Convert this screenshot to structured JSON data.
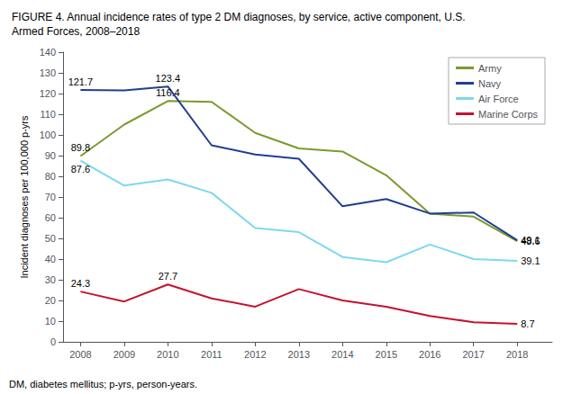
{
  "chart_data": {
    "type": "line",
    "title": "FIGURE 4. Annual incidence rates of type 2 DM diagnoses, by service, active component, U.S.\nArmed Forces, 2008–2018",
    "annotations": [
      "DM, diabetes mellitus; p-yrs, person-years."
    ],
    "ylabel": "Incident diagnoses per 100,000 p-yrs",
    "x": [
      2008,
      2009,
      2010,
      2011,
      2012,
      2013,
      2014,
      2015,
      2016,
      2017,
      2018
    ],
    "xlim": [
      2007.6,
      2018.8
    ],
    "xticks": [
      2008,
      2009,
      2010,
      2011,
      2012,
      2013,
      2014,
      2015,
      2016,
      2017,
      2018
    ],
    "ylim": [
      0,
      140
    ],
    "yticks": [
      0,
      10,
      20,
      30,
      40,
      50,
      60,
      70,
      80,
      90,
      100,
      110,
      120,
      130,
      140
    ],
    "grid": false,
    "legend": "upper right",
    "series": [
      {
        "name": "Army",
        "color": "#7a9a2e",
        "values": [
          89.8,
          105.0,
          116.4,
          116.0,
          101.0,
          93.5,
          92.0,
          80.5,
          62.0,
          60.5,
          48.6
        ],
        "value_labels": [
          "89.8",
          null,
          "116.4",
          null,
          null,
          null,
          null,
          null,
          null,
          null,
          "48.6"
        ]
      },
      {
        "name": "Navy",
        "color": "#1f3f8f",
        "values": [
          121.7,
          121.5,
          123.4,
          95.0,
          90.5,
          88.5,
          65.5,
          69.0,
          62.0,
          62.5,
          49.1
        ],
        "value_labels": [
          "121.7",
          null,
          "123.4",
          null,
          null,
          null,
          null,
          null,
          null,
          null,
          "49.1"
        ]
      },
      {
        "name": "Air Force",
        "color": "#7dd8f0",
        "values": [
          87.6,
          75.5,
          78.5,
          72.0,
          55.0,
          53.0,
          41.0,
          38.5,
          47.0,
          40.0,
          39.1
        ],
        "value_labels": [
          "87.6",
          null,
          null,
          null,
          null,
          null,
          null,
          null,
          null,
          null,
          "39.1"
        ]
      },
      {
        "name": "Marine Corps",
        "color": "#c41230",
        "values": [
          24.3,
          19.5,
          27.7,
          21.0,
          17.0,
          25.5,
          20.0,
          17.0,
          12.5,
          9.5,
          8.7
        ],
        "value_labels": [
          "24.3",
          null,
          "27.7",
          null,
          null,
          null,
          null,
          null,
          null,
          null,
          "8.7"
        ]
      }
    ]
  }
}
